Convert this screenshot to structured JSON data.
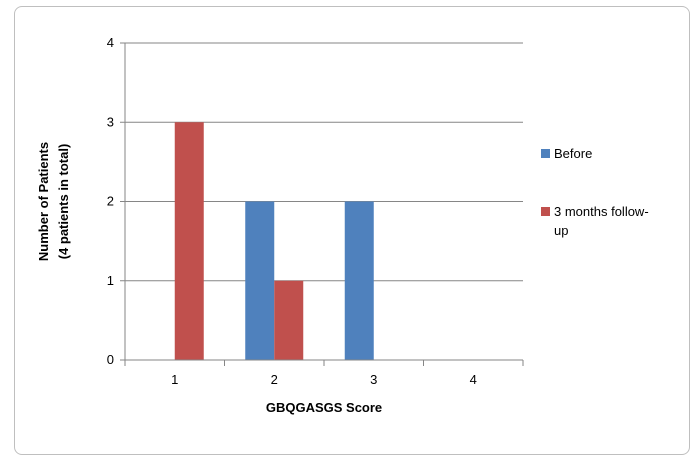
{
  "chart_data": {
    "type": "bar",
    "categories": [
      "1",
      "2",
      "3",
      "4"
    ],
    "series": [
      {
        "name": "Before",
        "values": [
          0,
          2,
          2,
          0
        ],
        "color": "#4f81bd"
      },
      {
        "name": "3 months follow-up",
        "values": [
          3,
          1,
          0,
          0
        ],
        "color": "#c0504d"
      }
    ],
    "title": "",
    "xlabel": "GBQGASGS Score",
    "ylabel": [
      "Number of Patients",
      "(4 patients in total)"
    ],
    "ylim": [
      0,
      4
    ],
    "yticks": [
      "0",
      "1",
      "2",
      "3",
      "4"
    ],
    "grid": true,
    "legend_position": "right",
    "legend_lines": [
      [
        "Before"
      ],
      [
        "3 months follow-",
        "up"
      ]
    ]
  }
}
